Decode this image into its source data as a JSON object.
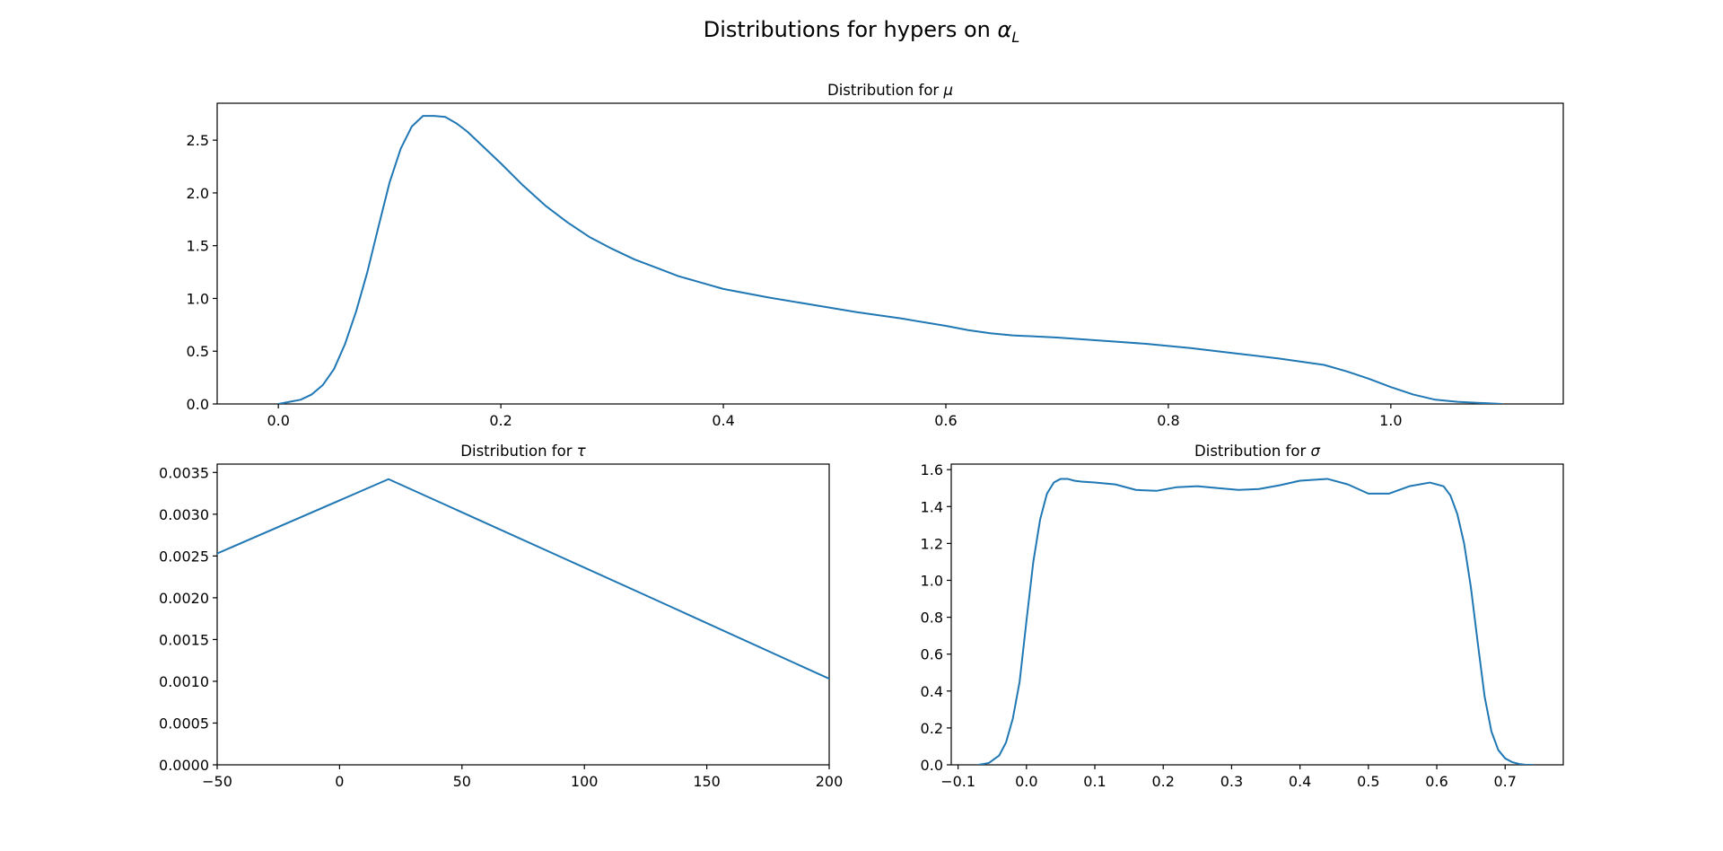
{
  "figure": {
    "suptitle_prefix": "Distributions for hypers on ",
    "suptitle_symbol": "α",
    "suptitle_subscript": "L"
  },
  "chart_data": [
    {
      "type": "line",
      "title_prefix": "Distribution for ",
      "title_symbol": "μ",
      "xlabel": "",
      "ylabel": "",
      "xlim": [
        -0.055,
        1.155
      ],
      "ylim": [
        0,
        2.85
      ],
      "xticks": [
        0.0,
        0.2,
        0.4,
        0.6,
        0.8,
        1.0
      ],
      "xtick_labels": [
        "0.0",
        "0.2",
        "0.4",
        "0.6",
        "0.8",
        "1.0"
      ],
      "yticks": [
        0.0,
        0.5,
        1.0,
        1.5,
        2.0,
        2.5
      ],
      "ytick_labels": [
        "0.0",
        "0.5",
        "1.0",
        "1.5",
        "2.0",
        "2.5"
      ],
      "grid": false,
      "color": "#1f77b4",
      "series": [
        {
          "x": [
            0.0,
            0.01,
            0.02,
            0.03,
            0.04,
            0.05,
            0.06,
            0.07,
            0.08,
            0.09,
            0.1,
            0.11,
            0.12,
            0.13,
            0.14,
            0.15,
            0.16,
            0.17,
            0.18,
            0.2,
            0.22,
            0.24,
            0.26,
            0.28,
            0.3,
            0.32,
            0.34,
            0.36,
            0.38,
            0.4,
            0.44,
            0.48,
            0.52,
            0.56,
            0.6,
            0.62,
            0.64,
            0.66,
            0.7,
            0.74,
            0.78,
            0.82,
            0.86,
            0.9,
            0.94,
            0.96,
            0.98,
            1.0,
            1.02,
            1.04,
            1.06,
            1.08,
            1.1
          ],
          "y": [
            0.0,
            0.02,
            0.04,
            0.09,
            0.18,
            0.33,
            0.57,
            0.88,
            1.25,
            1.68,
            2.1,
            2.42,
            2.63,
            2.73,
            2.73,
            2.72,
            2.66,
            2.58,
            2.48,
            2.28,
            2.07,
            1.88,
            1.72,
            1.58,
            1.47,
            1.37,
            1.29,
            1.21,
            1.15,
            1.09,
            1.01,
            0.94,
            0.87,
            0.81,
            0.74,
            0.7,
            0.67,
            0.65,
            0.63,
            0.6,
            0.57,
            0.53,
            0.48,
            0.43,
            0.37,
            0.31,
            0.24,
            0.16,
            0.09,
            0.04,
            0.02,
            0.01,
            0.0
          ]
        }
      ]
    },
    {
      "type": "line",
      "title_prefix": "Distribution for ",
      "title_symbol": "τ",
      "xlabel": "",
      "ylabel": "",
      "xlim": [
        -50,
        200
      ],
      "ylim": [
        0,
        0.0036
      ],
      "xticks": [
        -50,
        0,
        50,
        100,
        150,
        200
      ],
      "xtick_labels": [
        "−50",
        "0",
        "50",
        "100",
        "150",
        "200"
      ],
      "yticks": [
        0.0,
        0.0005,
        0.001,
        0.0015,
        0.002,
        0.0025,
        0.003,
        0.0035
      ],
      "ytick_labels": [
        "0.0000",
        "0.0005",
        "0.0010",
        "0.0015",
        "0.0020",
        "0.0025",
        "0.0030",
        "0.0035"
      ],
      "grid": false,
      "color": "#1f77b4",
      "series": [
        {
          "x": [
            -50,
            20,
            125,
            200
          ],
          "y": [
            0.00253,
            0.00342,
            0.00203,
            0.00103
          ]
        }
      ]
    },
    {
      "type": "line",
      "title_prefix": "Distribution for ",
      "title_symbol": "σ",
      "xlabel": "",
      "ylabel": "",
      "xlim": [
        -0.11,
        0.785
      ],
      "ylim": [
        0,
        1.63
      ],
      "xticks": [
        -0.1,
        0.0,
        0.1,
        0.2,
        0.3,
        0.4,
        0.5,
        0.6,
        0.7
      ],
      "xtick_labels": [
        "−0.1",
        "0.0",
        "0.1",
        "0.2",
        "0.3",
        "0.4",
        "0.5",
        "0.6",
        "0.7"
      ],
      "yticks": [
        0.0,
        0.2,
        0.4,
        0.6,
        0.8,
        1.0,
        1.2,
        1.4,
        1.6
      ],
      "ytick_labels": [
        "0.0",
        "0.2",
        "0.4",
        "0.6",
        "0.8",
        "1.0",
        "1.2",
        "1.4",
        "1.6"
      ],
      "grid": false,
      "color": "#1f77b4",
      "series": [
        {
          "x": [
            -0.07,
            -0.055,
            -0.04,
            -0.03,
            -0.02,
            -0.01,
            0.0,
            0.01,
            0.02,
            0.03,
            0.04,
            0.05,
            0.06,
            0.07,
            0.08,
            0.1,
            0.13,
            0.16,
            0.19,
            0.22,
            0.25,
            0.28,
            0.31,
            0.34,
            0.37,
            0.4,
            0.44,
            0.47,
            0.5,
            0.53,
            0.56,
            0.59,
            0.61,
            0.62,
            0.63,
            0.64,
            0.65,
            0.66,
            0.67,
            0.68,
            0.69,
            0.7,
            0.71,
            0.72,
            0.73,
            0.74
          ],
          "y": [
            0.0,
            0.01,
            0.05,
            0.12,
            0.25,
            0.45,
            0.78,
            1.1,
            1.33,
            1.47,
            1.53,
            1.55,
            1.55,
            1.54,
            1.535,
            1.53,
            1.52,
            1.49,
            1.485,
            1.505,
            1.51,
            1.5,
            1.49,
            1.495,
            1.515,
            1.54,
            1.55,
            1.52,
            1.47,
            1.47,
            1.51,
            1.53,
            1.51,
            1.46,
            1.36,
            1.2,
            0.96,
            0.66,
            0.37,
            0.18,
            0.08,
            0.035,
            0.015,
            0.005,
            0.0,
            0.0
          ]
        }
      ]
    }
  ]
}
